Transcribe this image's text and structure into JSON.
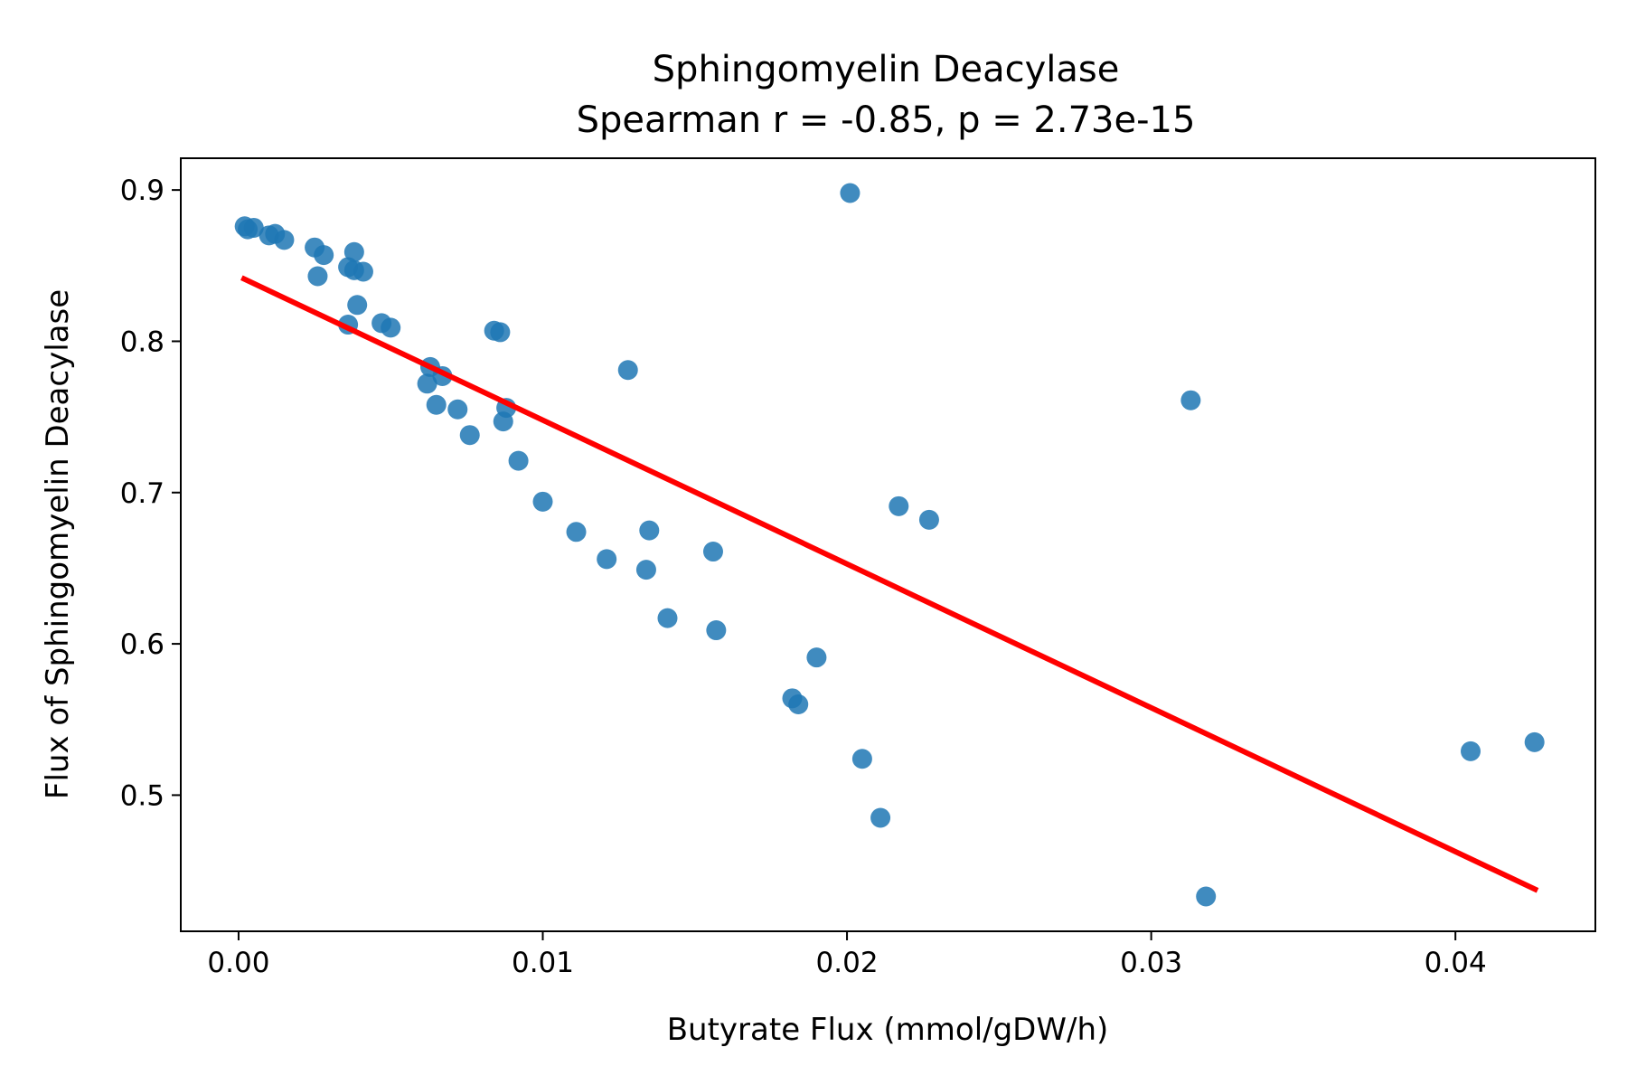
{
  "chart_data": {
    "type": "scatter",
    "title": "Sphingomyelin Deacylase",
    "subtitle": "Spearman r = -0.85, p = 2.73e-15",
    "xlabel": "Butyrate Flux (mmol/gDW/h)",
    "ylabel": "Flux of Sphingomyelin Deacylase",
    "xlim": [
      -0.0019,
      0.0446
    ],
    "ylim": [
      0.41,
      0.921
    ],
    "xticks": [
      0.0,
      0.01,
      0.02,
      0.03,
      0.04
    ],
    "xtick_labels": [
      "0.00",
      "0.01",
      "0.02",
      "0.03",
      "0.04"
    ],
    "yticks": [
      0.5,
      0.6,
      0.7,
      0.8,
      0.9
    ],
    "ytick_labels": [
      "0.5",
      "0.6",
      "0.7",
      "0.8",
      "0.9"
    ],
    "grid": false,
    "legend": "none",
    "point_color": "#1f77b4",
    "line_color": "#ff0000",
    "points": [
      {
        "x": 0.0002,
        "y": 0.876
      },
      {
        "x": 0.0003,
        "y": 0.874
      },
      {
        "x": 0.0005,
        "y": 0.875
      },
      {
        "x": 0.001,
        "y": 0.87
      },
      {
        "x": 0.0012,
        "y": 0.871
      },
      {
        "x": 0.0015,
        "y": 0.867
      },
      {
        "x": 0.0025,
        "y": 0.862
      },
      {
        "x": 0.0028,
        "y": 0.857
      },
      {
        "x": 0.0026,
        "y": 0.843
      },
      {
        "x": 0.0038,
        "y": 0.859
      },
      {
        "x": 0.0036,
        "y": 0.849
      },
      {
        "x": 0.0038,
        "y": 0.847
      },
      {
        "x": 0.0041,
        "y": 0.846
      },
      {
        "x": 0.0039,
        "y": 0.824
      },
      {
        "x": 0.0036,
        "y": 0.811
      },
      {
        "x": 0.0047,
        "y": 0.812
      },
      {
        "x": 0.005,
        "y": 0.809
      },
      {
        "x": 0.0063,
        "y": 0.783
      },
      {
        "x": 0.0067,
        "y": 0.777
      },
      {
        "x": 0.0062,
        "y": 0.772
      },
      {
        "x": 0.0065,
        "y": 0.758
      },
      {
        "x": 0.0072,
        "y": 0.755
      },
      {
        "x": 0.0076,
        "y": 0.738
      },
      {
        "x": 0.0084,
        "y": 0.807
      },
      {
        "x": 0.0086,
        "y": 0.806
      },
      {
        "x": 0.0088,
        "y": 0.756
      },
      {
        "x": 0.0087,
        "y": 0.747
      },
      {
        "x": 0.0092,
        "y": 0.721
      },
      {
        "x": 0.01,
        "y": 0.694
      },
      {
        "x": 0.0111,
        "y": 0.674
      },
      {
        "x": 0.0121,
        "y": 0.656
      },
      {
        "x": 0.0128,
        "y": 0.781
      },
      {
        "x": 0.0135,
        "y": 0.675
      },
      {
        "x": 0.0134,
        "y": 0.649
      },
      {
        "x": 0.0141,
        "y": 0.617
      },
      {
        "x": 0.0156,
        "y": 0.661
      },
      {
        "x": 0.0157,
        "y": 0.609
      },
      {
        "x": 0.0182,
        "y": 0.564
      },
      {
        "x": 0.0184,
        "y": 0.56
      },
      {
        "x": 0.019,
        "y": 0.591
      },
      {
        "x": 0.0201,
        "y": 0.898
      },
      {
        "x": 0.0205,
        "y": 0.524
      },
      {
        "x": 0.0211,
        "y": 0.485
      },
      {
        "x": 0.0217,
        "y": 0.691
      },
      {
        "x": 0.0227,
        "y": 0.682
      },
      {
        "x": 0.0313,
        "y": 0.761
      },
      {
        "x": 0.0318,
        "y": 0.433
      },
      {
        "x": 0.0405,
        "y": 0.529
      },
      {
        "x": 0.0426,
        "y": 0.535
      }
    ],
    "fit_line": {
      "x": [
        0.0001,
        0.0427
      ],
      "y": [
        0.842,
        0.437
      ]
    }
  }
}
